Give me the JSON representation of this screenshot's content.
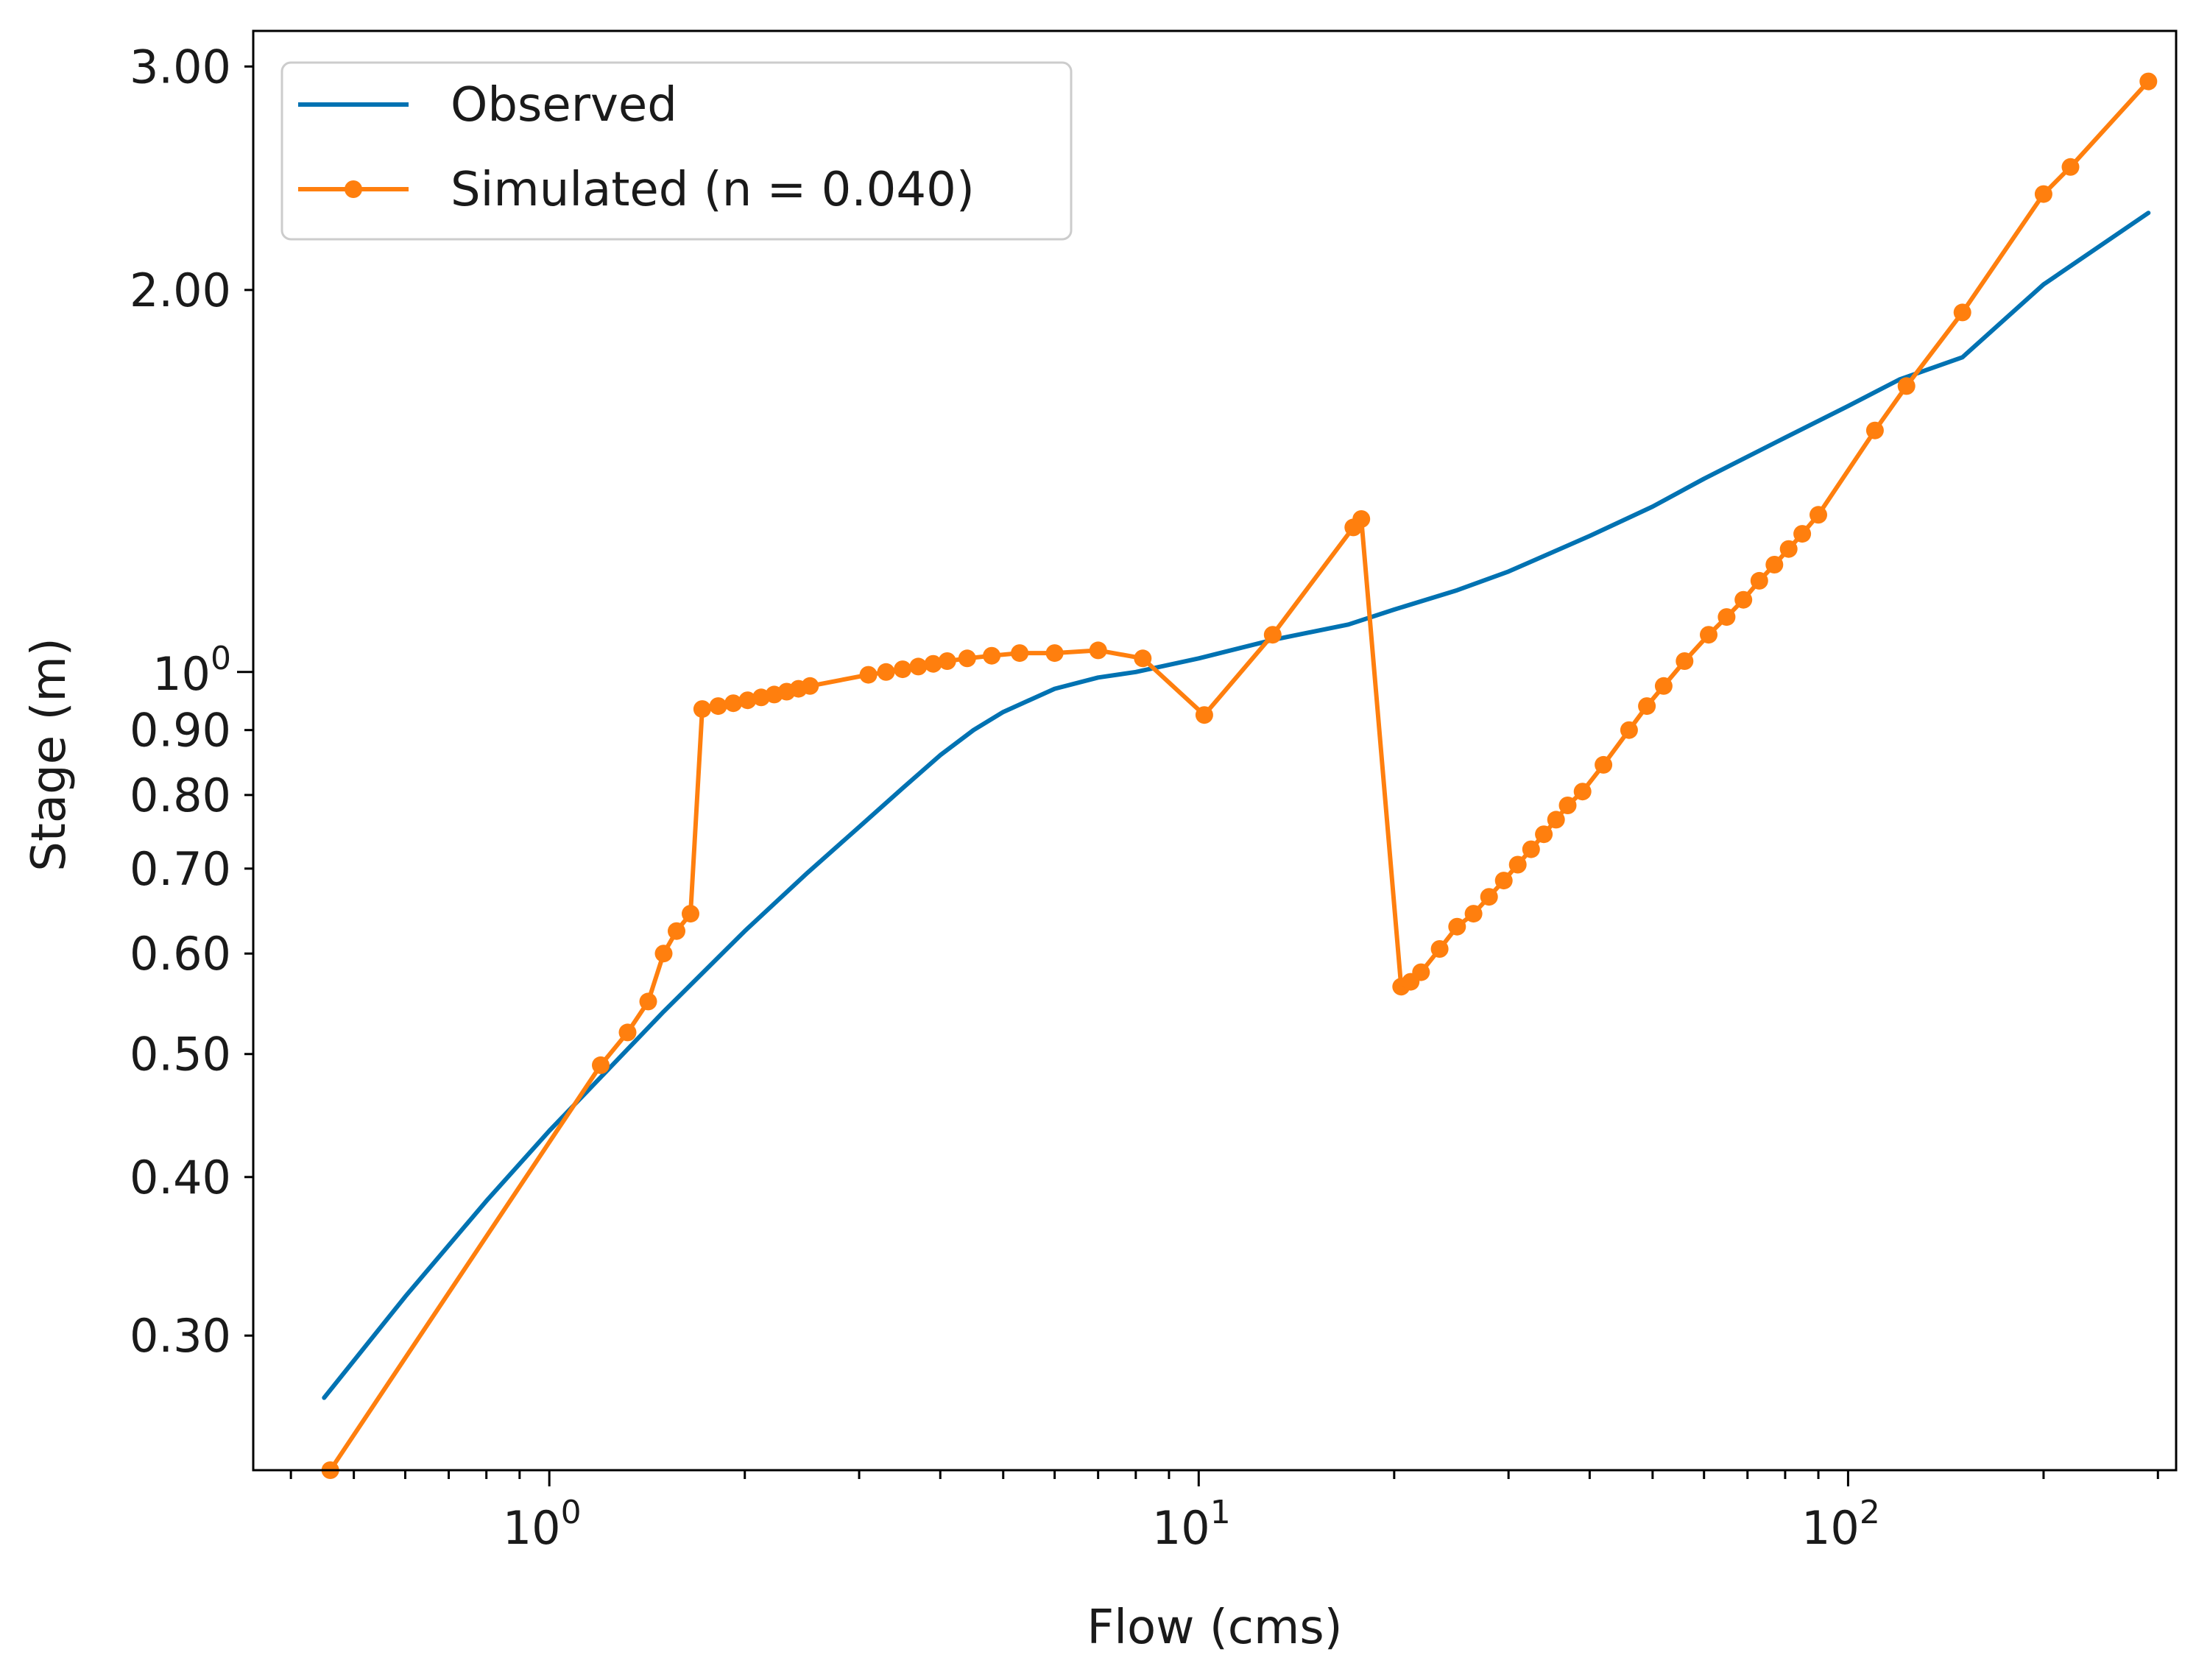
{
  "chart_data": {
    "type": "line",
    "title": "",
    "xlabel": "Flow (cms)",
    "ylabel": "Stage (m)",
    "xscale": "log",
    "yscale": "log",
    "xlim": [
      0.35,
      320
    ],
    "ylim": [
      0.235,
      3.2
    ],
    "grid": false,
    "legend_position": "top-left",
    "x_ticks": [
      {
        "value": 1,
        "base": "10",
        "exp": "0"
      },
      {
        "value": 10,
        "base": "10",
        "exp": "1"
      },
      {
        "value": 100,
        "base": "10",
        "exp": "2"
      }
    ],
    "y_ticks": [
      {
        "value": 0.3,
        "label": "0.30"
      },
      {
        "value": 0.4,
        "label": "0.40"
      },
      {
        "value": 0.5,
        "label": "0.50"
      },
      {
        "value": 0.6,
        "label": "0.60"
      },
      {
        "value": 0.7,
        "label": "0.70"
      },
      {
        "value": 0.8,
        "label": "0.80"
      },
      {
        "value": 0.9,
        "label": "0.90"
      },
      {
        "value": 2.0,
        "label": "2.00"
      },
      {
        "value": 3.0,
        "label": "3.00"
      }
    ],
    "y_power_tick": {
      "value": 1,
      "base": "10",
      "exp": "0"
    },
    "series": [
      {
        "name": "Observed",
        "color": "#0072b2",
        "marker": "none",
        "points": [
          [
            0.45,
            0.268
          ],
          [
            0.6,
            0.322
          ],
          [
            0.8,
            0.383
          ],
          [
            1.0,
            0.435
          ],
          [
            1.5,
            0.54
          ],
          [
            2.0,
            0.625
          ],
          [
            2.5,
            0.695
          ],
          [
            3.0,
            0.755
          ],
          [
            3.5,
            0.81
          ],
          [
            4.0,
            0.86
          ],
          [
            4.5,
            0.9
          ],
          [
            5.0,
            0.93
          ],
          [
            6.0,
            0.97
          ],
          [
            7.0,
            0.99
          ],
          [
            8.0,
            1.0
          ],
          [
            10.0,
            1.025
          ],
          [
            13.0,
            1.06
          ],
          [
            17.0,
            1.09
          ],
          [
            20.0,
            1.12
          ],
          [
            25.0,
            1.16
          ],
          [
            30.0,
            1.2
          ],
          [
            40.0,
            1.28
          ],
          [
            50.0,
            1.35
          ],
          [
            60.0,
            1.42
          ],
          [
            80.0,
            1.53
          ],
          [
            100.0,
            1.62
          ],
          [
            120.0,
            1.7
          ],
          [
            150.0,
            1.77
          ],
          [
            200.0,
            2.02
          ],
          [
            290.0,
            2.3
          ]
        ]
      },
      {
        "name": "Simulated (n = 0.040)",
        "color": "#ff7f0e",
        "marker": "circle",
        "points": [
          [
            0.46,
            0.235
          ],
          [
            1.2,
            0.49
          ],
          [
            1.32,
            0.52
          ],
          [
            1.42,
            0.55
          ],
          [
            1.5,
            0.6
          ],
          [
            1.57,
            0.625
          ],
          [
            1.65,
            0.645
          ],
          [
            1.72,
            0.935
          ],
          [
            1.82,
            0.94
          ],
          [
            1.92,
            0.945
          ],
          [
            2.02,
            0.95
          ],
          [
            2.12,
            0.955
          ],
          [
            2.22,
            0.96
          ],
          [
            2.32,
            0.965
          ],
          [
            2.42,
            0.97
          ],
          [
            2.52,
            0.975
          ],
          [
            3.1,
            0.995
          ],
          [
            3.3,
            1.0
          ],
          [
            3.5,
            1.005
          ],
          [
            3.7,
            1.01
          ],
          [
            3.9,
            1.015
          ],
          [
            4.1,
            1.02
          ],
          [
            4.4,
            1.025
          ],
          [
            4.8,
            1.03
          ],
          [
            5.3,
            1.035
          ],
          [
            6.0,
            1.035
          ],
          [
            7.0,
            1.04
          ],
          [
            8.2,
            1.025
          ],
          [
            10.2,
            0.925
          ],
          [
            13.0,
            1.07
          ],
          [
            17.3,
            1.3
          ],
          [
            17.8,
            1.32
          ],
          [
            20.5,
            0.565
          ],
          [
            21.2,
            0.57
          ],
          [
            22.0,
            0.58
          ],
          [
            23.5,
            0.605
          ],
          [
            25.0,
            0.63
          ],
          [
            26.5,
            0.645
          ],
          [
            28.0,
            0.665
          ],
          [
            29.5,
            0.685
          ],
          [
            31.0,
            0.705
          ],
          [
            32.5,
            0.725
          ],
          [
            34.0,
            0.745
          ],
          [
            35.5,
            0.765
          ],
          [
            37.0,
            0.785
          ],
          [
            39.0,
            0.805
          ],
          [
            42.0,
            0.845
          ],
          [
            46.0,
            0.9
          ],
          [
            49.0,
            0.94
          ],
          [
            52.0,
            0.975
          ],
          [
            56.0,
            1.02
          ],
          [
            61.0,
            1.07
          ],
          [
            65.0,
            1.105
          ],
          [
            69.0,
            1.14
          ],
          [
            73.0,
            1.18
          ],
          [
            77.0,
            1.215
          ],
          [
            81.0,
            1.25
          ],
          [
            85.0,
            1.285
          ],
          [
            90.0,
            1.33
          ],
          [
            110.0,
            1.55
          ],
          [
            123.0,
            1.68
          ],
          [
            150.0,
            1.92
          ],
          [
            200.0,
            2.38
          ],
          [
            220.0,
            2.5
          ],
          [
            290.0,
            2.92
          ]
        ]
      }
    ]
  }
}
